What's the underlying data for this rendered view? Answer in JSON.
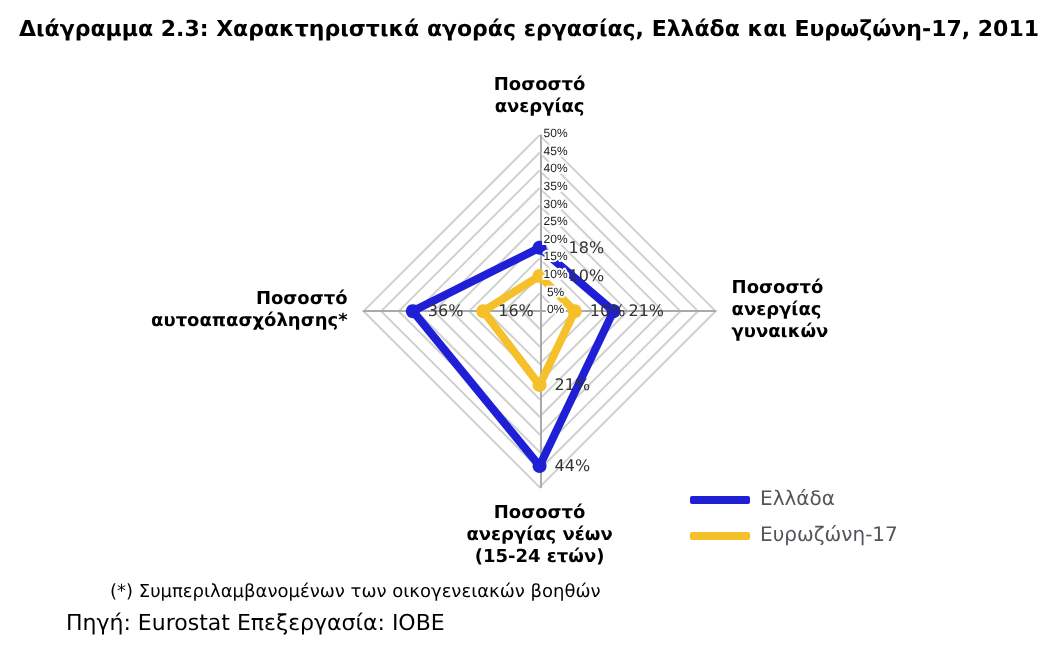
{
  "chart_data": {
    "type": "radar",
    "title": "Διάγραμμα 2.3: Χαρακτηριστικά αγοράς εργασίας, Ελλάδα και Ευρωζώνη-17, 2011",
    "categories": [
      "Ποσοστό ανεργίας",
      "Ποσοστό ανεργίας γυναικών",
      "Ποσοστό ανεργίας νέων (15-24 ετών)",
      "Ποσοστό αυτοαπασχόλησης*"
    ],
    "series": [
      {
        "name": "Ελλάδα",
        "color": "#1f1fd6",
        "values": [
          18,
          21,
          44,
          36
        ],
        "value_labels": [
          "18%",
          "21%",
          "44%",
          "36%"
        ]
      },
      {
        "name": "Ευρωζώνη-17",
        "color": "#f5c02a",
        "values": [
          10,
          10,
          21,
          16
        ],
        "value_labels": [
          "10%",
          "10%",
          "21%",
          "16%"
        ]
      }
    ],
    "ylim": [
      0,
      50
    ],
    "yticks": [
      {
        "value": 0,
        "label": "0%"
      },
      {
        "value": 5,
        "label": "5%"
      },
      {
        "value": 10,
        "label": "10%"
      },
      {
        "value": 15,
        "label": "15%"
      },
      {
        "value": 20,
        "label": "20%"
      },
      {
        "value": 25,
        "label": "25%"
      },
      {
        "value": 30,
        "label": "30%"
      },
      {
        "value": 35,
        "label": "35%"
      },
      {
        "value": 40,
        "label": "40%"
      },
      {
        "value": 45,
        "label": "45%"
      },
      {
        "value": 50,
        "label": "50%"
      }
    ],
    "grid": true,
    "legend": "bottom right",
    "marker": "circle",
    "line_style": "solid",
    "annotations": [
      "(*) Συμπεριλαμβανομένων των οικογενειακών βοηθών",
      "Πηγή: Eurostat Επεξεργασία: IOBE"
    ]
  }
}
